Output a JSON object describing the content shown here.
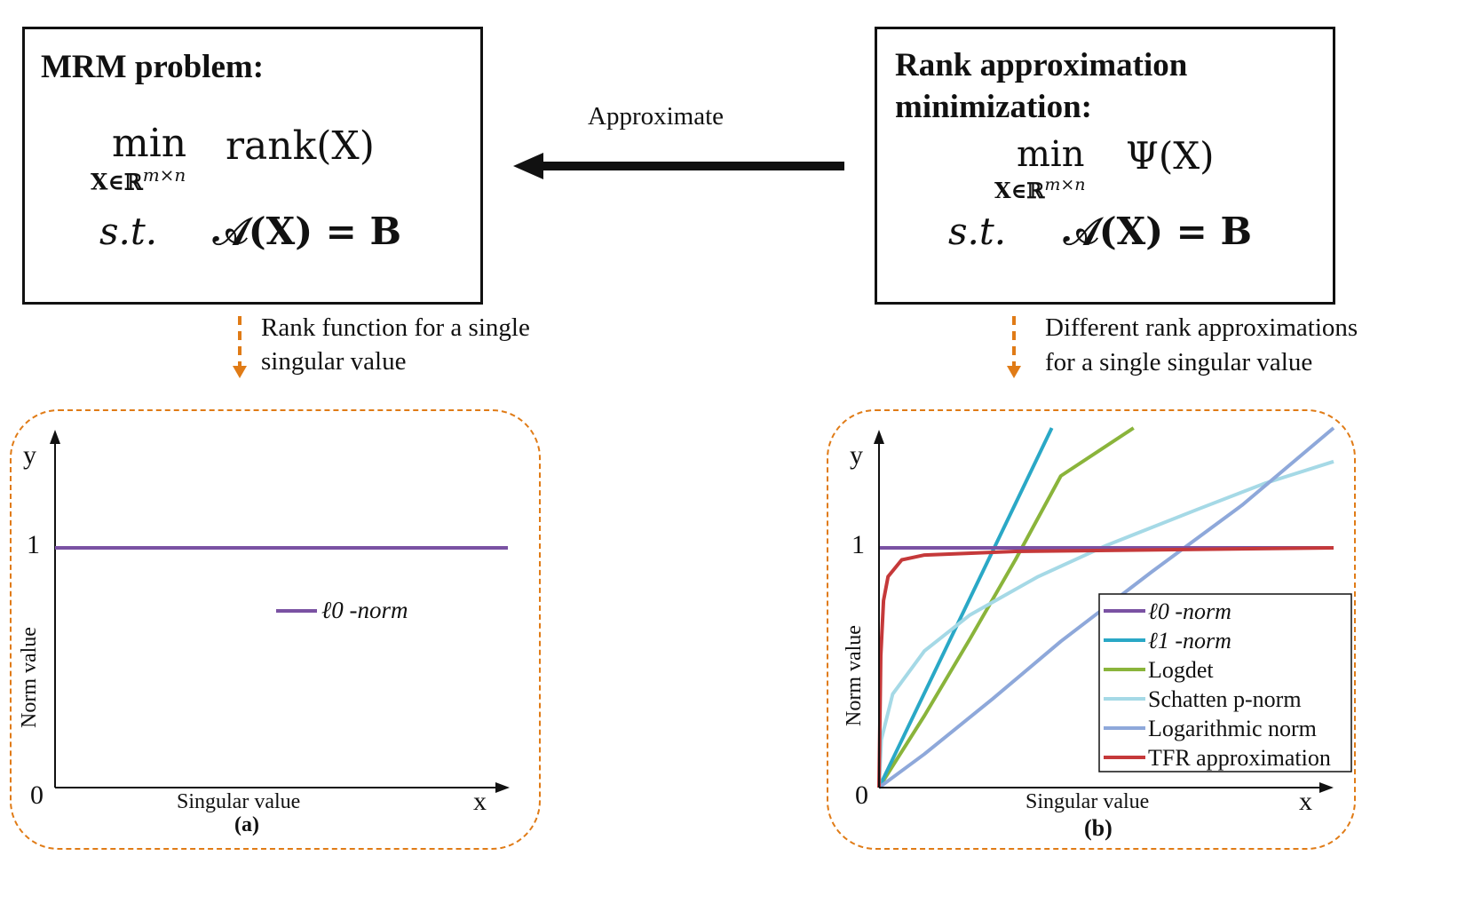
{
  "left_box": {
    "title": "MRM problem:",
    "objective_min": "min",
    "objective_sub": "X∈ℝ",
    "objective_sup": "m×n",
    "objective_fn": "rank(X)",
    "constraint_st": "s.t.",
    "constraint": "𝒜(X) = B"
  },
  "right_box": {
    "title_line1": "Rank approximation",
    "title_line2": "minimization:",
    "objective_min": "min",
    "objective_sub": "X∈ℝ",
    "objective_sup": "m×n",
    "objective_fn": "Ψ(X)",
    "constraint_st": "s.t.",
    "constraint": "𝒜(X) = B"
  },
  "arrow_label": "Approximate",
  "left_caption": [
    "Rank function for a single",
    "singular value"
  ],
  "right_caption": [
    "Different rank approximations",
    "for a single singular value"
  ],
  "colors": {
    "orange": "#e07b16",
    "l0": "#7a52a3",
    "l1": "#2aa8c6",
    "logdet": "#8ab43b",
    "schatten": "#a5d9e6",
    "lognorm": "#8ea8da",
    "tfr": "#c5393a"
  },
  "chart_data": [
    {
      "type": "line",
      "panel_label": "(a)",
      "xlabel": "Singular value",
      "ylabel": "Norm value",
      "x_axis_letter": "x",
      "y_axis_letter": "y",
      "yticks": [
        "0",
        "1"
      ],
      "series": [
        {
          "name": "ℓ0 -norm",
          "color": "#7a52a3",
          "points": [
            [
              0,
              1
            ],
            [
              1,
              1
            ]
          ]
        }
      ]
    },
    {
      "type": "line",
      "panel_label": "(b)",
      "xlabel": "Singular value",
      "ylabel": "Norm value",
      "x_axis_letter": "x",
      "y_axis_letter": "y",
      "yticks": [
        "0",
        "1"
      ],
      "series": [
        {
          "name": "ℓ0 -norm",
          "color": "#7a52a3",
          "points": [
            [
              0,
              1
            ],
            [
              1,
              1
            ]
          ]
        },
        {
          "name": "ℓ1 -norm",
          "color": "#2aa8c6",
          "points": [
            [
              0,
              0
            ],
            [
              0.38,
              1.5
            ]
          ]
        },
        {
          "name": "Logdet",
          "color": "#8ab43b",
          "points": [
            [
              0,
              0
            ],
            [
              0.1,
              0.3
            ],
            [
              0.2,
              0.62
            ],
            [
              0.3,
              0.95
            ],
            [
              0.4,
              1.3
            ],
            [
              0.56,
              1.5
            ]
          ]
        },
        {
          "name": "Schatten p-norm",
          "color": "#a5d9e6",
          "points": [
            [
              0,
              0
            ],
            [
              0.005,
              0.2
            ],
            [
              0.03,
              0.39
            ],
            [
              0.1,
              0.57
            ],
            [
              0.2,
              0.72
            ],
            [
              0.35,
              0.88
            ],
            [
              0.5,
              1.01
            ],
            [
              0.7,
              1.16
            ],
            [
              0.85,
              1.27
            ],
            [
              1.0,
              1.36
            ]
          ]
        },
        {
          "name": "Logarithmic norm",
          "color": "#8ea8da",
          "points": [
            [
              0,
              0
            ],
            [
              0.1,
              0.14
            ],
            [
              0.25,
              0.37
            ],
            [
              0.4,
              0.61
            ],
            [
              0.6,
              0.9
            ],
            [
              0.8,
              1.18
            ],
            [
              1.0,
              1.5
            ]
          ]
        },
        {
          "name": "TFR approximation",
          "color": "#c5393a",
          "points": [
            [
              0,
              0
            ],
            [
              0.004,
              0.55
            ],
            [
              0.01,
              0.78
            ],
            [
              0.02,
              0.88
            ],
            [
              0.05,
              0.95
            ],
            [
              0.1,
              0.97
            ],
            [
              0.3,
              0.985
            ],
            [
              1.0,
              1.0
            ]
          ]
        }
      ]
    }
  ]
}
